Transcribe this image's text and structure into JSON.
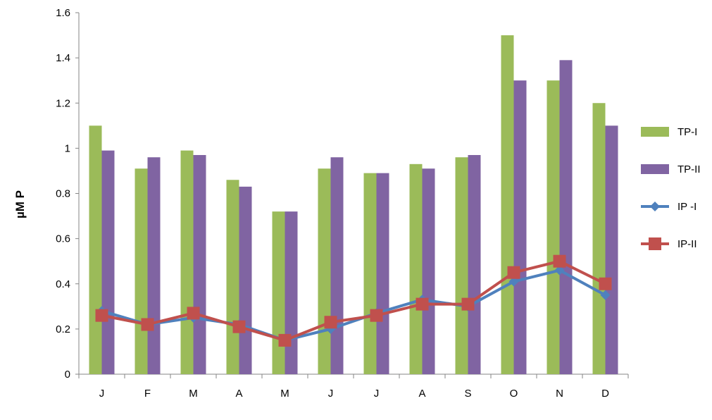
{
  "chart_data": {
    "type": "bar",
    "categories": [
      "J",
      "F",
      "M",
      "A",
      "M",
      "J",
      "J",
      "A",
      "S",
      "O",
      "N",
      "D"
    ],
    "ylabel": "µM P",
    "ylim": [
      0,
      1.6
    ],
    "yticks": [
      "0",
      "0.2",
      "0.4",
      "0.6",
      "0.8",
      "1",
      "1.2",
      "1.4",
      "1.6"
    ],
    "grid": false,
    "legend_position": "right",
    "series": [
      {
        "name": "TP-I",
        "kind": "bar",
        "color": "#9BBB59",
        "values": [
          1.1,
          0.91,
          0.99,
          0.86,
          0.72,
          0.91,
          0.89,
          0.93,
          0.96,
          1.5,
          1.3,
          1.2
        ]
      },
      {
        "name": "TP-II",
        "kind": "bar",
        "color": "#8064A2",
        "values": [
          0.99,
          0.96,
          0.97,
          0.83,
          0.72,
          0.96,
          0.89,
          0.91,
          0.97,
          1.3,
          1.39,
          1.1
        ]
      },
      {
        "name": "IP -I",
        "kind": "line",
        "marker": "diamond",
        "color": "#4F81BD",
        "values": [
          0.28,
          0.22,
          0.25,
          0.22,
          0.15,
          0.2,
          0.27,
          0.33,
          0.3,
          0.41,
          0.46,
          0.35
        ]
      },
      {
        "name": "IP-II",
        "kind": "line",
        "marker": "square",
        "color": "#C0504D",
        "values": [
          0.26,
          0.22,
          0.27,
          0.21,
          0.15,
          0.23,
          0.26,
          0.31,
          0.31,
          0.45,
          0.5,
          0.4
        ]
      }
    ]
  }
}
